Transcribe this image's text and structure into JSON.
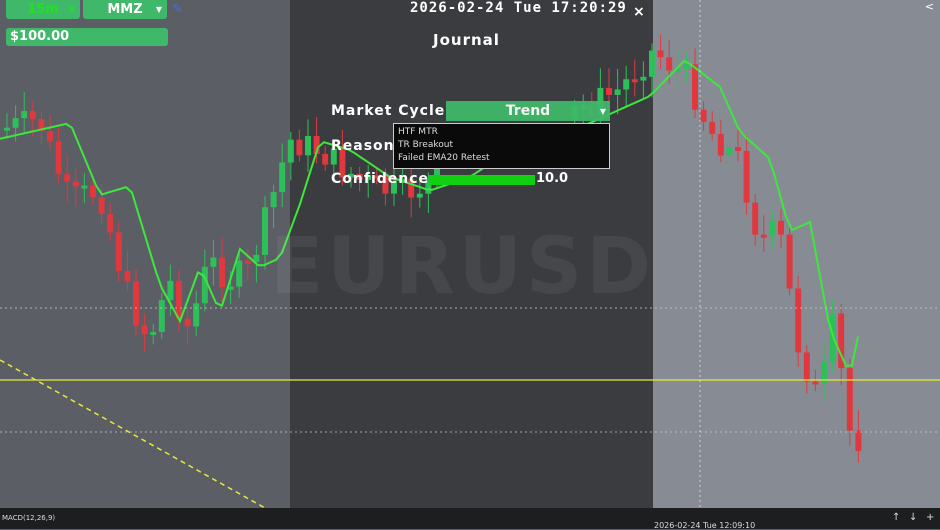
{
  "toolbar": {
    "timeframe": "15m",
    "symbol": "MMZ",
    "balance": "$100.00",
    "pen_icon": "pen-icon"
  },
  "clock": "2026-02-24 Tue 17:20:29",
  "journal": {
    "title": "Journal",
    "close": "×",
    "market_cycle_label": "Market Cycle",
    "market_cycle_value": "Trend",
    "reason_label": "Reason",
    "reasons": [
      "HTF MTR",
      "TR Breakout",
      "Failed EMA20 Retest"
    ],
    "confidence_label": "Confidence",
    "confidence_value": "10.0",
    "confidence_fraction": 1.0
  },
  "watermark": "EURUSD",
  "bottom": {
    "indicator": "MACD(12,26,9)",
    "crosshair_time": "2026-02-24 Tue 12:09:10",
    "up": "↑",
    "down": "↓",
    "add": "+"
  },
  "top_right": "<",
  "colors": {
    "bull": "#2fbf5a",
    "bear": "#e0383f",
    "ema": "#3de83d",
    "level": "#e8e83a",
    "accent": "#3fb86a"
  }
}
